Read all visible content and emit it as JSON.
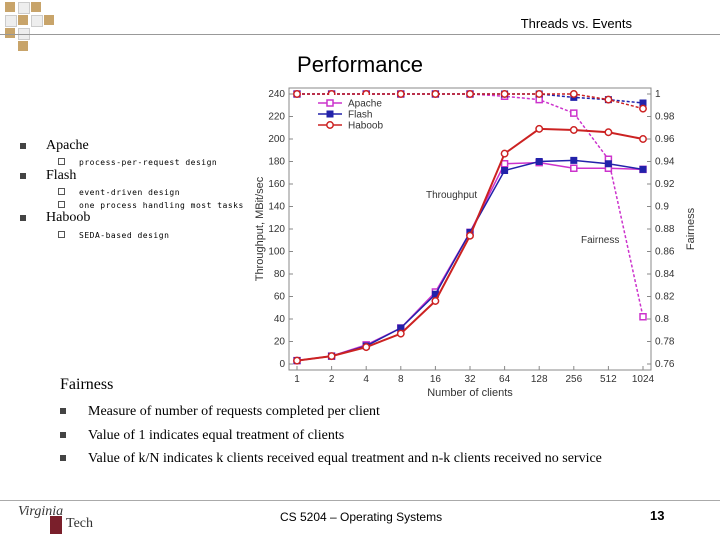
{
  "header": {
    "title": "Threads vs. Events"
  },
  "slide": {
    "title": "Performance"
  },
  "bullets": [
    {
      "label": "Apache",
      "subs": [
        "process-per-request design"
      ]
    },
    {
      "label": "Flash",
      "subs": [
        "event-driven design",
        "one process handling most tasks"
      ]
    },
    {
      "label": "Haboob",
      "subs": [
        "SEDA-based design"
      ]
    }
  ],
  "fairness": {
    "title": "Fairness",
    "items": [
      "Measure of number of requests completed per client",
      "Value of 1 indicates equal treatment of clients",
      "Value of k/N indicates k clients received equal treatment and n-k clients received no service"
    ]
  },
  "footer": {
    "course": "CS 5204 – Operating Systems",
    "page": "13",
    "logo_line1": "Virginia",
    "logo_line2": "Tech"
  },
  "colors": {
    "apache": "#cc33cc",
    "flash": "#2222aa",
    "haboob": "#cc2222",
    "deco": "#c8a46a"
  },
  "chart_data": {
    "type": "line",
    "categories": [
      "1",
      "2",
      "4",
      "8",
      "16",
      "32",
      "64",
      "128",
      "256",
      "512",
      "1024"
    ],
    "xlabel": "Number of clients",
    "ylabel": "Throughput, MBit/sec",
    "y2label": "Fairness",
    "ylim": [
      0,
      240
    ],
    "y2lim": [
      0.76,
      1.0
    ],
    "yticks": [
      0,
      20,
      40,
      60,
      80,
      100,
      120,
      140,
      160,
      180,
      200,
      220,
      240
    ],
    "y2ticks": [
      "0.76",
      "0.78",
      "0.8",
      "0.82",
      "0.84",
      "0.86",
      "0.88",
      "0.9",
      "0.92",
      "0.94",
      "0.96",
      "0.98",
      "1"
    ],
    "legend": [
      "Apache",
      "Flash",
      "Haboob"
    ],
    "legend_position": "top-left",
    "annotations": [
      "Throughput",
      "Fairness"
    ],
    "throughput_series": [
      {
        "name": "Apache",
        "values": [
          3,
          7,
          17,
          32,
          64,
          117,
          178,
          179,
          174,
          174,
          173
        ]
      },
      {
        "name": "Flash",
        "values": [
          3,
          7,
          16,
          32,
          62,
          117,
          172,
          180,
          181,
          178,
          173
        ]
      },
      {
        "name": "Haboob",
        "values": [
          3,
          7,
          15,
          27,
          56,
          114,
          187,
          209,
          208,
          206,
          200
        ]
      }
    ],
    "fairness_series": [
      {
        "name": "Apache",
        "values": [
          1.0,
          1.0,
          1.0,
          1.0,
          1.0,
          1.0,
          0.998,
          0.995,
          0.983,
          0.942,
          0.802
        ]
      },
      {
        "name": "Flash",
        "values": [
          1.0,
          1.0,
          1.0,
          1.0,
          1.0,
          1.0,
          1.0,
          1.0,
          0.997,
          0.995,
          0.992
        ]
      },
      {
        "name": "Haboob",
        "values": [
          1.0,
          1.0,
          1.0,
          1.0,
          1.0,
          1.0,
          1.0,
          1.0,
          1.0,
          0.995,
          0.987
        ]
      }
    ]
  }
}
